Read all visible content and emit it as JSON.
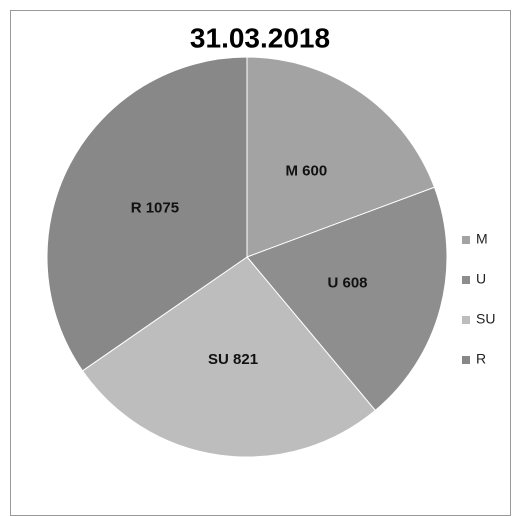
{
  "chart_data": {
    "type": "pie",
    "title": "31.03.2018",
    "categories": [
      "M",
      "U",
      "SU",
      "R"
    ],
    "values": [
      600,
      608,
      821,
      1075
    ],
    "value_labels": [
      "M 600",
      "U 608",
      "SU 821",
      "R 1075"
    ],
    "colors": [
      "#a3a3a3",
      "#8e8e8e",
      "#bdbdbd",
      "#888888"
    ],
    "legend": "right"
  }
}
